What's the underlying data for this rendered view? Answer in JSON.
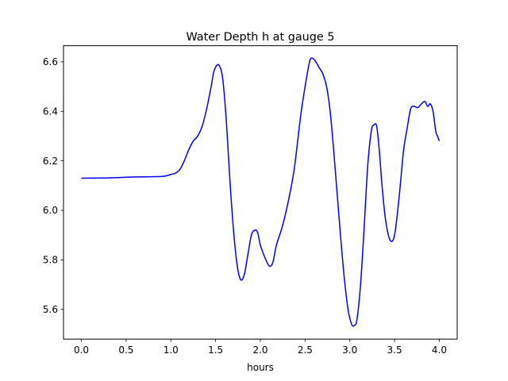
{
  "chart_data": {
    "type": "line",
    "title": "Water Depth h at gauge 5",
    "xlabel": "hours",
    "ylabel": "",
    "xlim": [
      -0.2,
      4.2
    ],
    "ylim": [
      5.48,
      6.665
    ],
    "xticks": [
      0.0,
      0.5,
      1.0,
      1.5,
      2.0,
      2.5,
      3.0,
      3.5,
      4.0
    ],
    "xtick_labels": [
      "0.0",
      "0.5",
      "1.0",
      "1.5",
      "2.0",
      "2.5",
      "3.0",
      "3.5",
      "4.0"
    ],
    "yticks": [
      5.6,
      5.8,
      6.0,
      6.2,
      6.4,
      6.6
    ],
    "ytick_labels": [
      "5.6",
      "5.8",
      "6.0",
      "6.2",
      "6.4",
      "6.6"
    ],
    "grid": false,
    "series": [
      {
        "color": "#0000ff",
        "x": [
          0.0,
          0.3,
          0.6,
          0.9,
          1.0,
          1.05,
          1.1,
          1.15,
          1.2,
          1.25,
          1.3,
          1.35,
          1.4,
          1.45,
          1.48,
          1.52,
          1.55,
          1.58,
          1.62,
          1.66,
          1.7,
          1.74,
          1.78,
          1.82,
          1.86,
          1.9,
          1.94,
          1.97,
          2.0,
          2.05,
          2.1,
          2.14,
          2.18,
          2.25,
          2.32,
          2.38,
          2.45,
          2.5,
          2.55,
          2.58,
          2.62,
          2.66,
          2.7,
          2.74,
          2.78,
          2.82,
          2.86,
          2.9,
          2.94,
          2.98,
          3.02,
          3.05,
          3.08,
          3.12,
          3.16,
          3.2,
          3.24,
          3.27,
          3.3,
          3.33,
          3.36,
          3.4,
          3.45,
          3.5,
          3.55,
          3.6,
          3.64,
          3.68,
          3.72,
          3.76,
          3.8,
          3.84,
          3.87,
          3.9,
          3.93,
          3.96,
          3.98,
          4.0
        ],
        "values": [
          6.13,
          6.131,
          6.135,
          6.137,
          6.145,
          6.15,
          6.165,
          6.2,
          6.245,
          6.28,
          6.3,
          6.34,
          6.41,
          6.5,
          6.56,
          6.588,
          6.578,
          6.53,
          6.36,
          6.12,
          5.92,
          5.78,
          5.72,
          5.74,
          5.82,
          5.9,
          5.92,
          5.91,
          5.86,
          5.81,
          5.775,
          5.79,
          5.86,
          5.94,
          6.05,
          6.17,
          6.38,
          6.5,
          6.6,
          6.615,
          6.6,
          6.575,
          6.55,
          6.5,
          6.4,
          6.24,
          6.06,
          5.88,
          5.72,
          5.6,
          5.54,
          5.535,
          5.56,
          5.7,
          5.93,
          6.18,
          6.32,
          6.345,
          6.34,
          6.24,
          6.1,
          5.96,
          5.88,
          5.9,
          6.05,
          6.24,
          6.33,
          6.41,
          6.42,
          6.415,
          6.43,
          6.44,
          6.42,
          6.43,
          6.4,
          6.32,
          6.3,
          6.28
        ]
      }
    ]
  }
}
